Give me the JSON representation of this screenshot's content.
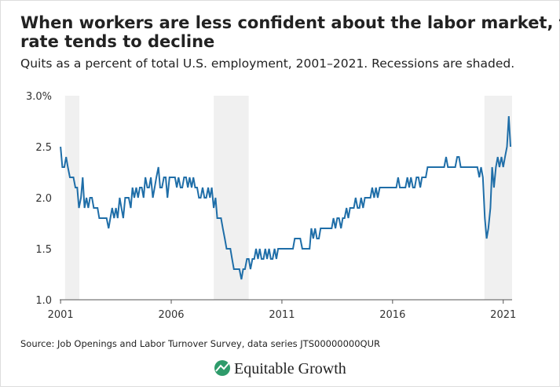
{
  "chart_data": {
    "type": "line",
    "title": "When workers are less confident about the labor market, the quits rate tends to decline",
    "subtitle": "Quits as a percent of total U.S. employment, 2001–2021. Recessions are shaded.",
    "source": "Source: Job Openings and Labor Turnover Survey, data series JTS00000000QUR",
    "brand": "Equitable Growth",
    "color": "#1f6ea8",
    "recessions": [
      [
        2001.2,
        2001.85
      ],
      [
        2007.92,
        2009.5
      ],
      [
        2020.15,
        2021.4
      ]
    ],
    "xlim": [
      2000.96,
      2021.4
    ],
    "xticks": [
      2001,
      2006,
      2011,
      2016,
      2021
    ],
    "ylim": [
      1,
      3
    ],
    "yticks": [
      {
        "value": 1,
        "label": "1.0"
      },
      1.5,
      {
        "value": 2,
        "label": "2.0"
      },
      2.5,
      {
        "value": 3,
        "label": "3.0%"
      }
    ],
    "x": [
      2001.0,
      2001.08,
      2001.17,
      2001.25,
      2001.33,
      2001.42,
      2001.5,
      2001.58,
      2001.67,
      2001.75,
      2001.83,
      2001.92,
      2002.0,
      2002.08,
      2002.17,
      2002.25,
      2002.33,
      2002.42,
      2002.5,
      2002.58,
      2002.67,
      2002.75,
      2002.83,
      2002.92,
      2003.0,
      2003.08,
      2003.17,
      2003.25,
      2003.33,
      2003.42,
      2003.5,
      2003.58,
      2003.67,
      2003.75,
      2003.83,
      2003.92,
      2004.0,
      2004.08,
      2004.17,
      2004.25,
      2004.33,
      2004.42,
      2004.5,
      2004.58,
      2004.67,
      2004.75,
      2004.83,
      2004.92,
      2005.0,
      2005.08,
      2005.17,
      2005.25,
      2005.33,
      2005.42,
      2005.5,
      2005.58,
      2005.67,
      2005.75,
      2005.83,
      2005.92,
      2006.0,
      2006.08,
      2006.17,
      2006.25,
      2006.33,
      2006.42,
      2006.5,
      2006.58,
      2006.67,
      2006.75,
      2006.83,
      2006.92,
      2007.0,
      2007.08,
      2007.17,
      2007.25,
      2007.33,
      2007.42,
      2007.5,
      2007.58,
      2007.67,
      2007.75,
      2007.83,
      2007.92,
      2008.0,
      2008.08,
      2008.17,
      2008.25,
      2008.33,
      2008.42,
      2008.5,
      2008.58,
      2008.67,
      2008.75,
      2008.83,
      2008.92,
      2009.0,
      2009.08,
      2009.17,
      2009.25,
      2009.33,
      2009.42,
      2009.5,
      2009.58,
      2009.67,
      2009.75,
      2009.83,
      2009.92,
      2010.0,
      2010.08,
      2010.17,
      2010.25,
      2010.33,
      2010.42,
      2010.5,
      2010.58,
      2010.67,
      2010.75,
      2010.83,
      2010.92,
      2011.0,
      2011.08,
      2011.17,
      2011.25,
      2011.33,
      2011.42,
      2011.5,
      2011.58,
      2011.67,
      2011.75,
      2011.83,
      2011.92,
      2012.0,
      2012.08,
      2012.17,
      2012.25,
      2012.33,
      2012.42,
      2012.5,
      2012.58,
      2012.67,
      2012.75,
      2012.83,
      2012.92,
      2013.0,
      2013.08,
      2013.17,
      2013.25,
      2013.33,
      2013.42,
      2013.5,
      2013.58,
      2013.67,
      2013.75,
      2013.83,
      2013.92,
      2014.0,
      2014.08,
      2014.17,
      2014.25,
      2014.33,
      2014.42,
      2014.5,
      2014.58,
      2014.67,
      2014.75,
      2014.83,
      2014.92,
      2015.0,
      2015.08,
      2015.17,
      2015.25,
      2015.33,
      2015.42,
      2015.5,
      2015.58,
      2015.67,
      2015.75,
      2015.83,
      2015.92,
      2016.0,
      2016.08,
      2016.17,
      2016.25,
      2016.33,
      2016.42,
      2016.5,
      2016.58,
      2016.67,
      2016.75,
      2016.83,
      2016.92,
      2017.0,
      2017.08,
      2017.17,
      2017.25,
      2017.33,
      2017.42,
      2017.5,
      2017.58,
      2017.67,
      2017.75,
      2017.83,
      2017.92,
      2018.0,
      2018.08,
      2018.17,
      2018.25,
      2018.33,
      2018.42,
      2018.5,
      2018.58,
      2018.67,
      2018.75,
      2018.83,
      2018.92,
      2019.0,
      2019.08,
      2019.17,
      2019.25,
      2019.33,
      2019.42,
      2019.5,
      2019.58,
      2019.67,
      2019.75,
      2019.83,
      2019.92,
      2020.0,
      2020.08,
      2020.17,
      2020.25,
      2020.33,
      2020.42,
      2020.5,
      2020.58,
      2020.67,
      2020.75,
      2020.83,
      2020.92,
      2021.0,
      2021.08,
      2021.17,
      2021.25,
      2021.33
    ],
    "values": [
      2.5,
      2.3,
      2.3,
      2.4,
      2.3,
      2.2,
      2.2,
      2.2,
      2.1,
      2.1,
      1.9,
      2.0,
      2.2,
      1.9,
      2.0,
      1.9,
      2.0,
      2.0,
      1.9,
      1.9,
      1.9,
      1.8,
      1.8,
      1.8,
      1.8,
      1.8,
      1.7,
      1.8,
      1.9,
      1.8,
      1.9,
      1.8,
      2.0,
      1.9,
      1.8,
      2.0,
      2.0,
      2.0,
      1.9,
      2.1,
      2.0,
      2.1,
      2.0,
      2.1,
      2.1,
      2.0,
      2.2,
      2.1,
      2.1,
      2.2,
      2.0,
      2.1,
      2.2,
      2.3,
      2.1,
      2.1,
      2.2,
      2.2,
      2.0,
      2.2,
      2.2,
      2.2,
      2.2,
      2.1,
      2.2,
      2.1,
      2.1,
      2.2,
      2.2,
      2.1,
      2.2,
      2.1,
      2.2,
      2.1,
      2.1,
      2.0,
      2.0,
      2.1,
      2.0,
      2.0,
      2.1,
      2.0,
      2.1,
      1.9,
      2.0,
      1.8,
      1.8,
      1.8,
      1.7,
      1.6,
      1.5,
      1.5,
      1.5,
      1.4,
      1.3,
      1.3,
      1.3,
      1.3,
      1.2,
      1.3,
      1.3,
      1.4,
      1.4,
      1.3,
      1.4,
      1.4,
      1.5,
      1.4,
      1.5,
      1.4,
      1.4,
      1.5,
      1.4,
      1.5,
      1.4,
      1.4,
      1.5,
      1.4,
      1.5,
      1.5,
      1.5,
      1.5,
      1.5,
      1.5,
      1.5,
      1.5,
      1.5,
      1.6,
      1.6,
      1.6,
      1.6,
      1.5,
      1.5,
      1.5,
      1.5,
      1.5,
      1.7,
      1.6,
      1.7,
      1.6,
      1.6,
      1.7,
      1.7,
      1.7,
      1.7,
      1.7,
      1.7,
      1.7,
      1.8,
      1.7,
      1.8,
      1.8,
      1.7,
      1.8,
      1.8,
      1.9,
      1.8,
      1.9,
      1.9,
      1.9,
      2.0,
      1.9,
      1.9,
      2.0,
      1.9,
      2.0,
      2.0,
      2.0,
      2.0,
      2.1,
      2.0,
      2.1,
      2.0,
      2.1,
      2.1,
      2.1,
      2.1,
      2.1,
      2.1,
      2.1,
      2.1,
      2.1,
      2.1,
      2.2,
      2.1,
      2.1,
      2.1,
      2.1,
      2.2,
      2.1,
      2.2,
      2.1,
      2.1,
      2.2,
      2.2,
      2.1,
      2.2,
      2.2,
      2.2,
      2.3,
      2.3,
      2.3,
      2.3,
      2.3,
      2.3,
      2.3,
      2.3,
      2.3,
      2.3,
      2.4,
      2.3,
      2.3,
      2.3,
      2.3,
      2.3,
      2.4,
      2.4,
      2.3,
      2.3,
      2.3,
      2.3,
      2.3,
      2.3,
      2.3,
      2.3,
      2.3,
      2.3,
      2.2,
      2.3,
      2.2,
      1.8,
      1.6,
      1.7,
      1.9,
      2.3,
      2.1,
      2.3,
      2.4,
      2.3,
      2.4,
      2.3,
      2.4,
      2.5,
      2.8,
      2.5
    ]
  }
}
